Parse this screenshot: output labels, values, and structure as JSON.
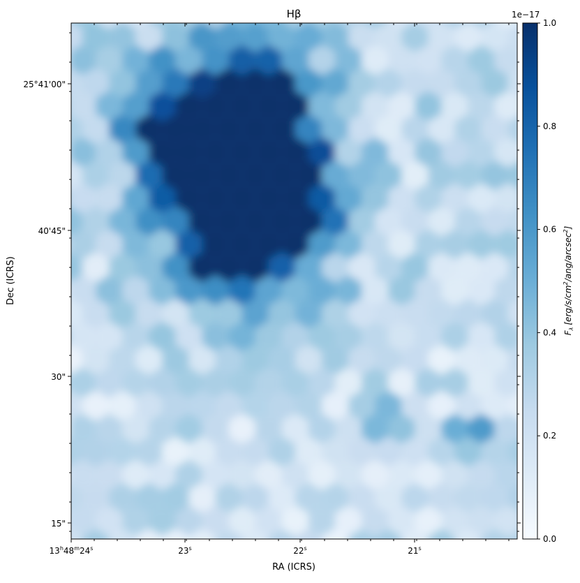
{
  "chart_data": {
    "type": "heatmap",
    "title": "Hβ",
    "xlabel": "RA (ICRS)",
    "ylabel": "Dec (ICRS)",
    "x_ticks": [
      {
        "main": "13",
        "h": "h",
        "m_val": "48",
        "m": "m",
        "s_val": "24",
        "s": "s"
      },
      {
        "main": "",
        "h": "",
        "m_val": "",
        "m": "",
        "s_val": "23",
        "s": "s"
      },
      {
        "main": "",
        "h": "",
        "m_val": "",
        "m": "",
        "s_val": "22",
        "s": "s"
      },
      {
        "main": "",
        "h": "",
        "m_val": "",
        "m": "",
        "s_val": "21",
        "s": "s"
      }
    ],
    "y_ticks": [
      "25°41'00\"",
      "40'45\"",
      "30\"",
      "15\""
    ],
    "colorbar": {
      "label": "F_λ [erg/s/cm²/ang/arcsec²]",
      "label_main": "F",
      "label_sub": "λ",
      "label_units": "[erg/s/cm",
      "label_sup1": "2",
      "label_mid": "/ang/arcsec",
      "label_sup2": "2",
      "label_end": "]",
      "exponent": "1e−17",
      "ticks": [
        "0.0",
        "0.2",
        "0.4",
        "0.6",
        "0.8",
        "1.0"
      ],
      "tick_values": [
        0.0,
        0.2,
        0.4,
        0.6,
        0.8,
        1.0
      ],
      "vmin": 0.0,
      "vmax": 1.0,
      "colormap": "Blues",
      "colors": [
        "#f7fbff",
        "#deebf7",
        "#c6dbef",
        "#9ecae1",
        "#6baed6",
        "#4292c6",
        "#2171b5",
        "#08519c",
        "#08306b"
      ]
    }
  }
}
